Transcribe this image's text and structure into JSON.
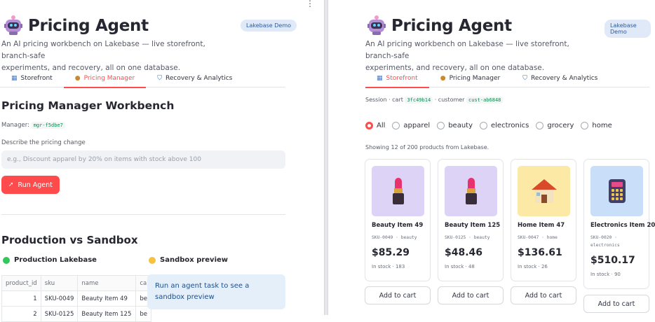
{
  "left": {
    "app_title": "Pricing Agent",
    "badge": "Lakebase Demo",
    "subtitle_lines": [
      "An AI pricing workbench on Lakebase — live storefront, branch-safe",
      "experiments, and recovery, all on one database."
    ],
    "tabs": [
      {
        "icon": "storefront-icon",
        "label": "Storefront",
        "active": false
      },
      {
        "icon": "money-bag-icon",
        "label": "Pricing Manager",
        "active": true
      },
      {
        "icon": "shield-icon",
        "label": "Recovery & Analytics",
        "active": false
      }
    ],
    "workbench_title": "Pricing Manager Workbench",
    "manager_label": "Manager:",
    "manager_id": "mgr-f5dbe7",
    "describe_label": "Describe the pricing change",
    "input_placeholder": "e.g., Discount apparel by 20% on items with stock above 100",
    "run_button": "Run Agent",
    "run_icon": "rocket-icon",
    "compare_title": "Production vs Sandbox",
    "production_label": "Production Lakebase",
    "production_dot_color": "#34c759",
    "sandbox_label": "Sandbox preview",
    "sandbox_dot_color": "#f5c242",
    "table": {
      "columns": [
        "product_id",
        "sku",
        "name",
        "ca"
      ],
      "rows": [
        [
          "1",
          "SKU-0049",
          "Beauty Item 49",
          "be"
        ],
        [
          "2",
          "SKU-0125",
          "Beauty Item 125",
          "be"
        ]
      ]
    },
    "sandbox_info": "Run an agent task to see a sandbox preview"
  },
  "right": {
    "app_title": "Pricing Agent",
    "badge": "Lakebase Demo",
    "subtitle_lines": [
      "An AI pricing workbench on Lakebase — live storefront, branch-safe",
      "experiments, and recovery, all on one database."
    ],
    "tabs": [
      {
        "icon": "storefront-icon",
        "label": "Storefront",
        "active": true
      },
      {
        "icon": "money-bag-icon",
        "label": "Pricing Manager",
        "active": false
      },
      {
        "icon": "shield-icon",
        "label": "Recovery & Analytics",
        "active": false
      }
    ],
    "session_prefix": "Session · cart",
    "cart_id": "3fc49b14",
    "customer_prefix": "· customer",
    "customer_id": "cust-ab6848",
    "categories": [
      "All",
      "apparel",
      "beauty",
      "electronics",
      "grocery",
      "home"
    ],
    "selected_category": "All",
    "showing_text": "Showing 12 of 200 products from Lakebase.",
    "products": [
      {
        "name": "Beauty Item 49",
        "sku": "SKU-0049 · beauty",
        "price": "$85.29",
        "stock": "In stock · 183",
        "art": "lipstick-icon",
        "bg": "#ddd3f7"
      },
      {
        "name": "Beauty Item 125",
        "sku": "SKU-0125 · beauty",
        "price": "$48.46",
        "stock": "In stock · 48",
        "art": "lipstick-icon",
        "bg": "#ddd3f7"
      },
      {
        "name": "Home Item 47",
        "sku": "SKU-0047 · home",
        "price": "$136.61",
        "stock": "In stock · 26",
        "art": "house-icon",
        "bg": "#fde9a6"
      },
      {
        "name": "Electronics Item 20",
        "sku": "SKU-0020 · electronics",
        "price": "$510.17",
        "stock": "In stock · 90",
        "art": "calculator-icon",
        "bg": "#c9def8"
      }
    ],
    "add_to_cart": "Add to cart"
  }
}
